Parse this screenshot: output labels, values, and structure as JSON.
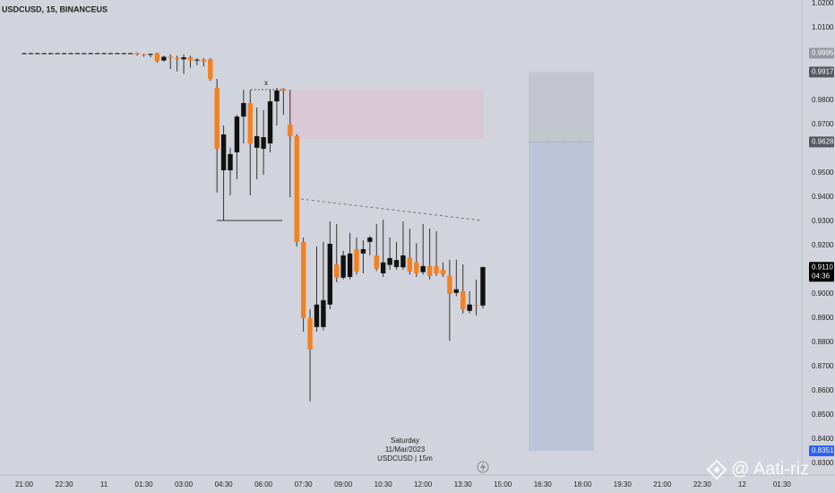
{
  "chart_data": {
    "type": "candlestick",
    "title": "USDCUSD, 15, BINANCEUS",
    "annotation": "x",
    "date_label": {
      "day": "Saturday",
      "date": "11/Mar/2023",
      "symbol": "USDCUSD | 15m"
    },
    "watermark": "@ Aati-riz",
    "countdown": "04:36",
    "categories": [
      "21:00",
      null,
      null,
      null,
      null,
      null,
      "22:30",
      null,
      null,
      null,
      null,
      null,
      "11",
      null,
      null,
      null,
      null,
      null,
      "01:30",
      null,
      null,
      null,
      null,
      null,
      "03:00",
      null,
      null,
      null,
      null,
      null,
      "04:30",
      null,
      null,
      null,
      null,
      null,
      "06:00",
      null,
      null,
      null,
      null,
      null,
      "07:30",
      null,
      null,
      null,
      null,
      null,
      "09:00",
      null,
      null,
      null,
      null,
      null,
      "10:30",
      null,
      null,
      null,
      null,
      null,
      "12:00",
      null,
      null,
      null,
      null,
      null,
      "13:30",
      null,
      null,
      null,
      null,
      null,
      "15:00",
      null,
      null,
      null,
      null,
      null,
      "16:30",
      null,
      null,
      null,
      null,
      null,
      "18:00",
      null,
      null,
      null,
      null,
      null,
      "19:30",
      null,
      null,
      null,
      null,
      null,
      "21:00",
      null,
      null,
      null,
      null,
      null,
      "22:30",
      null,
      null,
      null,
      null,
      null,
      "12",
      null,
      null,
      null,
      null,
      null,
      "01:30"
    ],
    "open": [
      0.9995,
      0.9995,
      0.9995,
      0.9995,
      0.9995,
      0.9995,
      0.9995,
      0.9995,
      0.9995,
      0.9995,
      0.9995,
      0.9995,
      0.9995,
      0.9995,
      0.9995,
      0.9995,
      0.9995,
      0.9996,
      0.999,
      0.9988,
      0.9995,
      0.9965,
      0.998,
      0.9975,
      0.997,
      0.9978,
      0.9965,
      0.9968,
      0.997,
      0.9852,
      0.9511,
      0.9511,
      0.9585,
      0.9733,
      0.9789,
      0.9604,
      0.96,
      0.9622,
      0.9796,
      0.9848,
      0.97,
      0.9652,
      0.9215,
      0.89,
      0.8863,
      0.8863,
      0.8956,
      0.9122,
      0.9067,
      0.907,
      0.9185,
      0.9167,
      0.9215,
      0.9159,
      0.9085,
      0.912,
      0.9111,
      0.911,
      0.915,
      0.913,
      0.909,
      0.9115,
      0.9115,
      0.91,
      0.9074,
      0.9004,
      0.9011,
      0.893,
      0.8955,
      0.8952,
      null,
      null,
      null,
      null,
      null,
      null,
      null,
      null,
      null,
      null,
      null,
      null,
      null,
      null,
      null,
      null,
      null,
      null,
      null,
      null,
      null,
      null,
      null,
      null,
      null,
      null,
      null,
      null,
      null,
      null,
      null,
      null,
      null,
      null,
      null,
      null,
      null,
      null,
      null,
      null,
      null,
      null,
      null,
      null,
      null
    ],
    "high": [
      0.9997,
      0.9997,
      0.9997,
      0.9997,
      0.9997,
      0.9997,
      0.9997,
      0.9997,
      0.9997,
      0.9997,
      0.9997,
      0.9997,
      0.9997,
      0.9997,
      0.9997,
      0.9997,
      0.9997,
      0.9998,
      0.9993,
      0.9994,
      0.9998,
      0.9985,
      0.999,
      0.9985,
      0.999,
      0.9985,
      0.9975,
      0.9975,
      0.9975,
      0.9889,
      0.9696,
      0.9604,
      0.974,
      0.9844,
      0.9844,
      0.977,
      0.976,
      0.9844,
      0.9852,
      0.9852,
      0.9844,
      0.966,
      0.9233,
      0.8937,
      0.9196,
      0.9215,
      0.93,
      0.9289,
      0.9178,
      0.9252,
      0.9233,
      0.9222,
      0.924,
      0.9289,
      0.9307,
      0.9233,
      0.9215,
      0.93,
      0.927,
      0.921,
      0.9289,
      0.927,
      0.9259,
      0.913,
      0.9141,
      0.9141,
      0.9122,
      0.9011,
      0.9059,
      0.9111,
      null,
      null,
      null,
      null,
      null,
      null,
      null,
      null,
      null,
      null,
      null,
      null,
      null,
      null,
      null,
      null,
      null,
      null,
      null,
      null,
      null,
      null,
      null,
      null,
      null,
      null,
      null,
      null,
      null,
      null,
      null,
      null,
      null,
      null,
      null,
      null,
      null,
      null,
      null,
      null,
      null,
      null,
      null,
      null,
      null
    ],
    "low": [
      0.9993,
      0.9993,
      0.9993,
      0.9993,
      0.9993,
      0.9993,
      0.9993,
      0.9993,
      0.9993,
      0.9993,
      0.9993,
      0.9993,
      0.9993,
      0.9993,
      0.9993,
      0.9993,
      0.9993,
      0.9985,
      0.998,
      0.9978,
      0.9955,
      0.996,
      0.993,
      0.992,
      0.991,
      0.9935,
      0.9945,
      0.994,
      0.988,
      0.9419,
      0.9304,
      0.9407,
      0.9474,
      0.9622,
      0.9407,
      0.9474,
      0.9493,
      0.9585,
      0.9696,
      0.974,
      0.94,
      0.9196,
      0.8844,
      0.8556,
      0.8844,
      0.885,
      0.8937,
      0.9048,
      0.906,
      0.906,
      0.908,
      0.9085,
      0.916,
      0.9095,
      0.907,
      0.91,
      0.91,
      0.91,
      0.908,
      0.907,
      0.908,
      0.906,
      0.9075,
      0.907,
      0.8807,
      0.899,
      0.8919,
      0.892,
      0.8911,
      0.894,
      null,
      null,
      null,
      null,
      null,
      null,
      null,
      null,
      null,
      null,
      null,
      null,
      null,
      null,
      null,
      null,
      null,
      null,
      null,
      null,
      null,
      null,
      null,
      null,
      null,
      null,
      null,
      null,
      null,
      null,
      null,
      null,
      null,
      null,
      null,
      null,
      null,
      null,
      null,
      null,
      null,
      null,
      null,
      null,
      null
    ],
    "close": [
      0.9995,
      0.9995,
      0.9995,
      0.9995,
      0.9995,
      0.9995,
      0.9995,
      0.9995,
      0.9995,
      0.9995,
      0.9995,
      0.9995,
      0.9995,
      0.9995,
      0.9995,
      0.9995,
      0.9995,
      0.999,
      0.9988,
      0.9992,
      0.9962,
      0.998,
      0.9975,
      0.997,
      0.9978,
      0.9965,
      0.9968,
      0.996,
      0.9889,
      0.96,
      0.9659,
      0.9578,
      0.9733,
      0.9789,
      0.9622,
      0.9652,
      0.9648,
      0.9796,
      0.9841,
      0.9838,
      0.9652,
      0.9215,
      0.89,
      0.877,
      0.8956,
      0.8974,
      0.9207,
      0.9067,
      0.9159,
      0.9167,
      0.9093,
      0.9185,
      0.9233,
      0.9104,
      0.913,
      0.9148,
      0.914,
      0.9159,
      0.9093,
      0.9085,
      0.9115,
      0.9074,
      0.9085,
      0.908,
      0.9,
      0.9019,
      0.8937,
      0.8956,
      0.895,
      0.9111,
      null,
      null,
      null,
      null,
      null,
      null,
      null,
      null,
      null,
      null,
      null,
      null,
      null,
      null,
      null,
      null,
      null,
      null,
      null,
      null,
      null,
      null,
      null,
      null,
      null,
      null,
      null,
      null,
      null,
      null,
      null,
      null,
      null,
      null,
      null,
      null,
      null,
      null,
      null,
      null,
      null,
      null,
      null,
      null,
      null
    ],
    "up_color": "#111111",
    "down_color": "#f5801e",
    "wick_color": "#333333",
    "ylim": [
      0.8251,
      1.0215
    ],
    "yticks": [
      {
        "value": 1.02,
        "label": "1.0200"
      },
      {
        "value": 1.01,
        "label": "1.0100"
      },
      {
        "value": 0.98,
        "label": "0.9800"
      },
      {
        "value": 0.97,
        "label": "0.9700"
      },
      {
        "value": 0.95,
        "label": "0.9500"
      },
      {
        "value": 0.94,
        "label": "0.9400"
      },
      {
        "value": 0.93,
        "label": "0.9300"
      },
      {
        "value": 0.92,
        "label": "0.9200"
      },
      {
        "value": 0.9,
        "label": "0.9000"
      },
      {
        "value": 0.89,
        "label": "0.8900"
      },
      {
        "value": 0.88,
        "label": "0.8800"
      },
      {
        "value": 0.87,
        "label": "0.8700"
      },
      {
        "value": 0.86,
        "label": "0.8600"
      },
      {
        "value": 0.85,
        "label": "0.8500"
      },
      {
        "value": 0.84,
        "label": "0.8400"
      },
      {
        "value": 0.83,
        "label": "0.8300"
      }
    ],
    "grid": false,
    "price_labels": [
      0.9995,
      0.9917,
      0.9628,
      {
        "value": 0.911,
        "label": "0.9110"
      },
      0.8351
    ],
    "price_label_colors": [
      "#9598a1",
      "#555861",
      "#555861",
      "#000000",
      "#2962ff"
    ],
    "position_colors": [
      "#c3c6cf",
      "#bcc4d9"
    ]
  }
}
